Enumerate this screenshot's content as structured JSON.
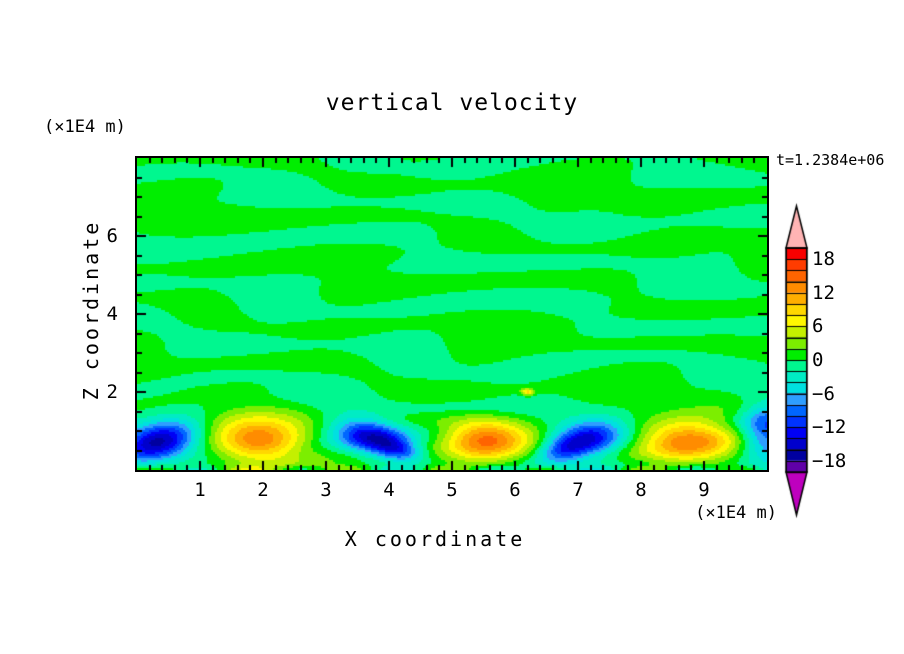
{
  "title": "vertical velocity",
  "time_label": "t=1.2384e+06",
  "axes": {
    "x_label": "X coordinate",
    "y_label": "Z coordinate",
    "x_unit": "(×1E4 m)",
    "y_unit": "(×1E4 m)",
    "x_ticks": [
      1,
      2,
      3,
      4,
      5,
      6,
      7,
      8,
      9
    ],
    "y_ticks": [
      2,
      4,
      6
    ],
    "x_range": [
      0,
      10
    ],
    "y_range": [
      0,
      8
    ],
    "x_minor_step": 0.2,
    "y_minor_step": 0.5
  },
  "colorbar": {
    "labels": [
      "18",
      "12",
      "6",
      "0",
      "−6",
      "−12",
      "−18"
    ],
    "label_values": [
      18,
      12,
      6,
      0,
      -6,
      -12,
      -18
    ],
    "level_min": -20,
    "level_max": 20,
    "level_step": 2,
    "colors_low_to_high": [
      "#6000A8",
      "#0000A0",
      "#0000CC",
      "#0000F5",
      "#0033FF",
      "#0066FF",
      "#2E9EFF",
      "#00E0E0",
      "#00ECC4",
      "#00F78F",
      "#00EE00",
      "#7CEE00",
      "#C4F000",
      "#FFF700",
      "#FFD700",
      "#FFAE00",
      "#FF8C00",
      "#FF6400",
      "#FF3C00",
      "#F80000"
    ],
    "over_color": "#FFB4B4",
    "under_color": "#BE00BE"
  },
  "chart_data": {
    "type": "heatmap",
    "subtype": "filled-contour",
    "title": "vertical velocity",
    "time_annotation": "t=1.2384e+06",
    "xlabel": "X coordinate",
    "ylabel": "Z coordinate",
    "x_unit_scale": "×1E4 m",
    "y_unit_scale": "×1E4 m",
    "x_range": [
      0,
      10
    ],
    "y_range": [
      0,
      8
    ],
    "contour_levels": {
      "min": -20,
      "max": 20,
      "step": 2
    },
    "legend_position": "right-colorbar",
    "grid": false,
    "description": "2D vertical-velocity cross-section: weak streaky field (|w|<2, two green shades) over most of the domain; row of alternating strong downdraft (blue, w≈-14 to -17) and updraft (orange, w≈+14) cells hugging the lower boundary near z≈0.7×1E4 m.",
    "cells": [
      {
        "label": "downdraft",
        "cx": 0.3,
        "cz": 0.7,
        "sx": 0.5,
        "sz": 0.3,
        "rot": 35,
        "amp": -16.5
      },
      {
        "label": "updraft",
        "cx": 1.93,
        "cz": 0.75,
        "sx": 0.52,
        "sz": 0.4,
        "rot": 0,
        "amp": 13.8
      },
      {
        "label": "downdraft",
        "cx": 3.72,
        "cz": 0.85,
        "sx": 0.45,
        "sz": 0.3,
        "rot": -32,
        "amp": -14.0
      },
      {
        "label": "downdraft-lobe",
        "cx": 4.15,
        "cz": 0.5,
        "sx": 0.28,
        "sz": 0.18,
        "rot": -30,
        "amp": -8.0
      },
      {
        "label": "updraft",
        "cx": 5.52,
        "cz": 0.72,
        "sx": 0.46,
        "sz": 0.38,
        "rot": 0,
        "amp": 14.6
      },
      {
        "label": "downdraft",
        "cx": 7.15,
        "cz": 0.8,
        "sx": 0.42,
        "sz": 0.3,
        "rot": 28,
        "amp": -13.5
      },
      {
        "label": "downdraft-lobe",
        "cx": 6.75,
        "cz": 0.5,
        "sx": 0.3,
        "sz": 0.2,
        "rot": 30,
        "amp": -7.0
      },
      {
        "label": "updraft",
        "cx": 8.7,
        "cz": 0.78,
        "sx": 0.54,
        "sz": 0.38,
        "rot": 0,
        "amp": 13.6
      },
      {
        "label": "downdraft-edge",
        "cx": 10.0,
        "cz": 1.0,
        "sx": 0.3,
        "sz": 0.55,
        "rot": 0,
        "amp": -10.5
      },
      {
        "label": "speck",
        "cx": 6.2,
        "cz": 2.0,
        "sx": 0.07,
        "sz": 0.06,
        "rot": 0,
        "amp": 9.0
      }
    ],
    "background_noise": {
      "a1": 1.15,
      "f1x": 0.58,
      "f1z": 4.9,
      "w1": 1.35,
      "w1x": 1.15,
      "w1z": -2.2,
      "w1p": 1.0,
      "w2": 0.8,
      "w2x": 0.9,
      "w2z": 1.3,
      "a2": 0.72,
      "f2x": 1.65,
      "f2z": -3.4,
      "m2": 2.0,
      "m2x": 0.52,
      "m2z": 1.35,
      "p2": 2.1
    },
    "bottom_strip": {
      "amp": 3.2,
      "zscale": 0.077,
      "xfreq": 4.0,
      "phase": 0.8
    }
  }
}
